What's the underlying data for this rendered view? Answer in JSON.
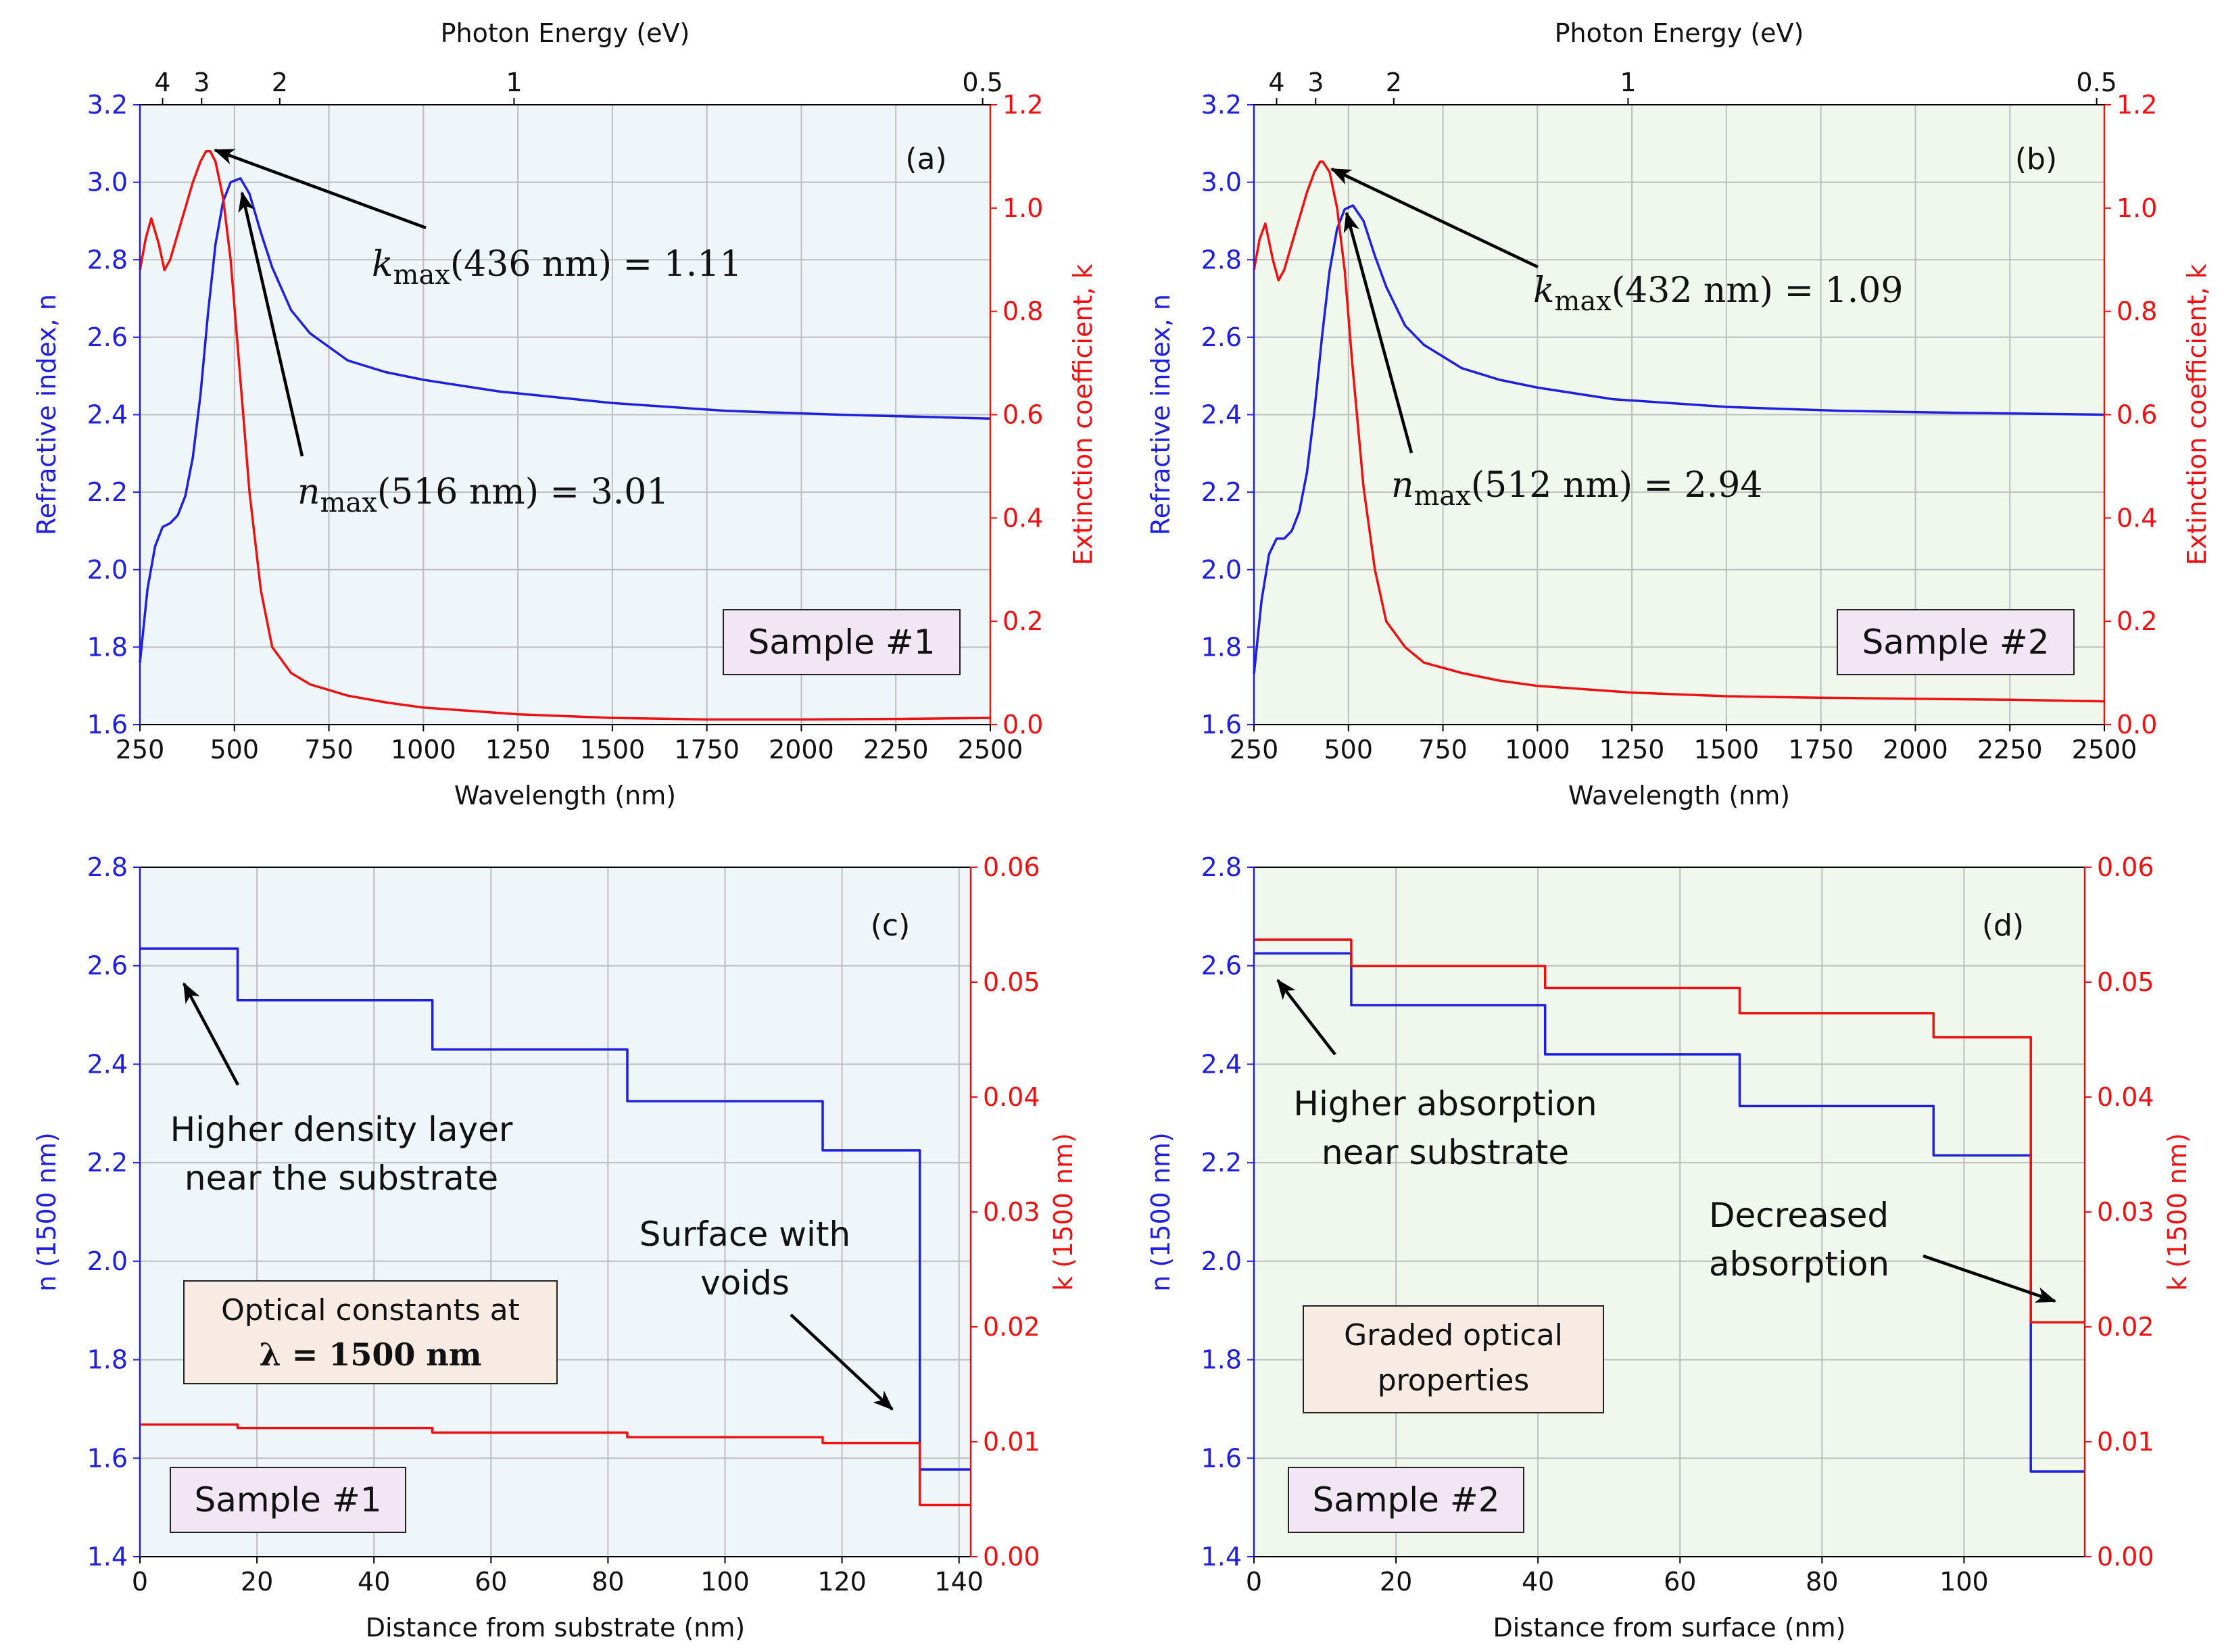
{
  "chart_data": [
    {
      "id": "a",
      "type": "line",
      "panel_label": "(a)",
      "top_axis_label": "Photon Energy (eV)",
      "top_ticks": [
        "4",
        "3",
        "2",
        "1",
        "0.5"
      ],
      "xlabel": "Wavelength (nm)",
      "ylabel_left": "Refractive index, n",
      "ylabel_right": "Extinction coefficient, k",
      "xlim": [
        250,
        2500
      ],
      "ylim_left": [
        1.6,
        3.2
      ],
      "ylim_right": [
        0.0,
        1.2
      ],
      "x_ticks": [
        "250",
        "500",
        "750",
        "1000",
        "1250",
        "1500",
        "1750",
        "2000",
        "2250",
        "2500"
      ],
      "y_left_ticks": [
        "1.6",
        "1.8",
        "2.0",
        "2.2",
        "2.4",
        "2.6",
        "2.8",
        "3.0",
        "3.2"
      ],
      "y_right_ticks": [
        "0.0",
        "0.2",
        "0.4",
        "0.6",
        "0.8",
        "1.0",
        "1.2"
      ],
      "sample_label": "Sample #1",
      "annotation_k_label": "k",
      "annotation_k_sub": "max",
      "annotation_k_text": "(436 nm) = 1.11",
      "annotation_n_label": "n",
      "annotation_n_sub": "max",
      "annotation_n_text": "(516 nm) = 3.01",
      "series": [
        {
          "name": "n",
          "axis": "left",
          "color": "#1f1fe0",
          "x": [
            250,
            270,
            290,
            310,
            330,
            350,
            370,
            390,
            410,
            430,
            450,
            470,
            490,
            516,
            540,
            570,
            600,
            650,
            700,
            800,
            900,
            1000,
            1200,
            1500,
            1800,
            2100,
            2500
          ],
          "y": [
            1.76,
            1.95,
            2.06,
            2.11,
            2.12,
            2.14,
            2.19,
            2.29,
            2.45,
            2.66,
            2.84,
            2.95,
            3.0,
            3.01,
            2.97,
            2.87,
            2.78,
            2.67,
            2.61,
            2.54,
            2.51,
            2.49,
            2.46,
            2.43,
            2.41,
            2.4,
            2.39
          ]
        },
        {
          "name": "k",
          "axis": "right",
          "color": "#ee1111",
          "x": [
            250,
            265,
            280,
            300,
            315,
            330,
            350,
            370,
            390,
            410,
            425,
            436,
            450,
            470,
            490,
            510,
            540,
            570,
            600,
            650,
            700,
            800,
            900,
            1000,
            1250,
            1500,
            1750,
            2000,
            2250,
            2500
          ],
          "y": [
            0.88,
            0.94,
            0.98,
            0.93,
            0.88,
            0.9,
            0.95,
            1.0,
            1.05,
            1.09,
            1.11,
            1.11,
            1.09,
            1.02,
            0.9,
            0.72,
            0.45,
            0.26,
            0.15,
            0.1,
            0.078,
            0.056,
            0.043,
            0.033,
            0.02,
            0.013,
            0.01,
            0.01,
            0.011,
            0.013
          ]
        }
      ]
    },
    {
      "id": "b",
      "type": "line",
      "panel_label": "(b)",
      "top_axis_label": "Photon Energy (eV)",
      "top_ticks": [
        "4",
        "3",
        "2",
        "1",
        "0.5"
      ],
      "xlabel": "Wavelength (nm)",
      "ylabel_left": "Refractive index, n",
      "ylabel_right": "Extinction coefficient, k",
      "xlim": [
        250,
        2500
      ],
      "ylim_left": [
        1.6,
        3.2
      ],
      "ylim_right": [
        0.0,
        1.2
      ],
      "x_ticks": [
        "250",
        "500",
        "750",
        "1000",
        "1250",
        "1500",
        "1750",
        "2000",
        "2250",
        "2500"
      ],
      "y_left_ticks": [
        "1.6",
        "1.8",
        "2.0",
        "2.2",
        "2.4",
        "2.6",
        "2.8",
        "3.0",
        "3.2"
      ],
      "y_right_ticks": [
        "0.0",
        "0.2",
        "0.4",
        "0.6",
        "0.8",
        "1.0",
        "1.2"
      ],
      "sample_label": "Sample #2",
      "annotation_k_label": "k",
      "annotation_k_sub": "max",
      "annotation_k_text": "(432 nm) = 1.09",
      "annotation_n_label": "n",
      "annotation_n_sub": "max",
      "annotation_n_text": "(512 nm) = 2.94",
      "series": [
        {
          "name": "n",
          "axis": "left",
          "color": "#1f1fe0",
          "x": [
            250,
            270,
            290,
            310,
            330,
            350,
            370,
            390,
            410,
            430,
            450,
            470,
            490,
            512,
            540,
            570,
            600,
            650,
            700,
            800,
            900,
            1000,
            1200,
            1500,
            1800,
            2100,
            2500
          ],
          "y": [
            1.73,
            1.92,
            2.04,
            2.08,
            2.08,
            2.1,
            2.15,
            2.25,
            2.41,
            2.6,
            2.77,
            2.88,
            2.93,
            2.94,
            2.9,
            2.81,
            2.73,
            2.63,
            2.58,
            2.52,
            2.49,
            2.47,
            2.44,
            2.42,
            2.41,
            2.405,
            2.4
          ]
        },
        {
          "name": "k",
          "axis": "right",
          "color": "#ee1111",
          "x": [
            250,
            265,
            280,
            300,
            315,
            330,
            350,
            370,
            390,
            410,
            425,
            432,
            450,
            470,
            490,
            510,
            540,
            570,
            600,
            650,
            700,
            800,
            900,
            1000,
            1250,
            1500,
            1750,
            2000,
            2250,
            2500
          ],
          "y": [
            0.88,
            0.94,
            0.97,
            0.9,
            0.86,
            0.88,
            0.93,
            0.98,
            1.03,
            1.07,
            1.09,
            1.09,
            1.07,
            1.0,
            0.88,
            0.7,
            0.46,
            0.3,
            0.2,
            0.15,
            0.12,
            0.1,
            0.085,
            0.075,
            0.062,
            0.055,
            0.052,
            0.05,
            0.048,
            0.045
          ]
        }
      ]
    },
    {
      "id": "c",
      "type": "step",
      "panel_label": "(c)",
      "xlabel": "Distance from substrate (nm)",
      "ylabel_left": "n (1500 nm)",
      "ylabel_right": "k (1500 nm)",
      "xlim": [
        0,
        142
      ],
      "ylim_left": [
        1.4,
        2.8
      ],
      "ylim_right": [
        0.0,
        0.06
      ],
      "x_ticks": [
        "0",
        "20",
        "40",
        "60",
        "80",
        "100",
        "120",
        "140"
      ],
      "y_left_ticks": [
        "1.4",
        "1.6",
        "1.8",
        "2.0",
        "2.2",
        "2.4",
        "2.6",
        "2.8"
      ],
      "y_right_ticks": [
        "0.00",
        "0.01",
        "0.02",
        "0.03",
        "0.04",
        "0.05",
        "0.06"
      ],
      "sample_label": "Sample #1",
      "box_line1": "Optical constants at",
      "box_line2": "λ = 1500 nm",
      "annotation_1_line1": "Higher density layer",
      "annotation_1_line2": "near the substrate",
      "annotation_2_line1": "Surface with",
      "annotation_2_line2": "voids",
      "series": [
        {
          "name": "n",
          "axis": "left",
          "color": "#1f1fe0",
          "edges": [
            0,
            16.7,
            50,
            83.3,
            116.7,
            133.3,
            142
          ],
          "values": [
            2.635,
            2.53,
            2.43,
            2.325,
            2.225,
            1.577
          ]
        },
        {
          "name": "k",
          "axis": "right",
          "color": "#ee1111",
          "edges": [
            0,
            16.7,
            50,
            83.3,
            116.7,
            133.3,
            142
          ],
          "values": [
            0.0115,
            0.0112,
            0.0108,
            0.0104,
            0.0099,
            0.0045
          ]
        }
      ]
    },
    {
      "id": "d",
      "type": "step",
      "panel_label": "(d)",
      "xlabel": "Distance from surface (nm)",
      "ylabel_left": "n (1500 nm)",
      "ylabel_right": "k (1500 nm)",
      "xlim": [
        0,
        117
      ],
      "ylim_left": [
        1.4,
        2.8
      ],
      "ylim_right": [
        0.0,
        0.06
      ],
      "x_ticks": [
        "0",
        "20",
        "40",
        "60",
        "80",
        "100"
      ],
      "y_left_ticks": [
        "1.4",
        "1.6",
        "1.8",
        "2.0",
        "2.2",
        "2.4",
        "2.6",
        "2.8"
      ],
      "y_right_ticks": [
        "0.00",
        "0.01",
        "0.02",
        "0.03",
        "0.04",
        "0.05",
        "0.06"
      ],
      "sample_label": "Sample #2",
      "box_line1": "Graded optical",
      "box_line2": "properties",
      "annotation_1_line1": "Higher absorption",
      "annotation_1_line2": "near substrate",
      "annotation_2_line1": "Decreased",
      "annotation_2_line2": "absorption",
      "series": [
        {
          "name": "n",
          "axis": "left",
          "color": "#1f1fe0",
          "edges": [
            0,
            13.7,
            41,
            68.4,
            95.7,
            109.4,
            117
          ],
          "values": [
            2.625,
            2.52,
            2.42,
            2.315,
            2.215,
            1.573
          ]
        },
        {
          "name": "k",
          "axis": "right",
          "color": "#ee1111",
          "edges": [
            0,
            13.7,
            41,
            68.4,
            95.7,
            109.4,
            117
          ],
          "values": [
            0.0537,
            0.0514,
            0.0495,
            0.0473,
            0.0452,
            0.0204
          ]
        }
      ]
    }
  ]
}
